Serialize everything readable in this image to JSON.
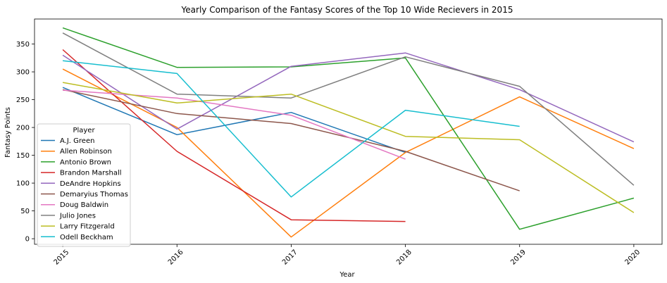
{
  "chart_data": {
    "type": "line",
    "title": "Yearly Comparison of the Fantasy Scores of the Top 10 Wide Recievers in 2015",
    "xlabel": "Year",
    "ylabel": "Fantasy Points",
    "categories": [
      "2015",
      "2016",
      "2017",
      "2018",
      "2019",
      "2020"
    ],
    "x": [
      2015,
      2016,
      2017,
      2018,
      2019,
      2020
    ],
    "xlim": [
      2015,
      2020
    ],
    "ylim": [
      -10,
      395
    ],
    "yticks": [
      0,
      50,
      100,
      150,
      200,
      250,
      300,
      350
    ],
    "grid": false,
    "legend": {
      "title": "Player",
      "placement": "center-left"
    },
    "series": [
      {
        "name": "A.J. Green",
        "color": "#1f77b4",
        "values": [
          272,
          187,
          227,
          155,
          null,
          null
        ]
      },
      {
        "name": "Allen Robinson",
        "color": "#ff7f0e",
        "values": [
          305,
          200,
          3,
          155,
          255,
          162
        ]
      },
      {
        "name": "Antonio Brown",
        "color": "#2ca02c",
        "values": [
          379,
          308,
          309,
          325,
          17,
          73
        ]
      },
      {
        "name": "Brandon Marshall",
        "color": "#d62728",
        "values": [
          340,
          157,
          34,
          31,
          null,
          null
        ]
      },
      {
        "name": "DeAndre Hopkins",
        "color": "#9467bd",
        "values": [
          330,
          197,
          310,
          334,
          268,
          174
        ]
      },
      {
        "name": "Demaryius Thomas",
        "color": "#8c564b",
        "values": [
          268,
          225,
          207,
          157,
          86,
          null
        ]
      },
      {
        "name": "Doug Baldwin",
        "color": "#e377c2",
        "values": [
          267,
          253,
          222,
          143,
          null,
          null
        ]
      },
      {
        "name": "Julio Jones",
        "color": "#7f7f7f",
        "values": [
          370,
          260,
          253,
          327,
          274,
          96
        ]
      },
      {
        "name": "Larry Fitzgerald",
        "color": "#bcbd22",
        "values": [
          281,
          244,
          260,
          184,
          178,
          47
        ]
      },
      {
        "name": "Odell Beckham",
        "color": "#17becf",
        "values": [
          320,
          297,
          75,
          231,
          202,
          null
        ]
      }
    ]
  }
}
